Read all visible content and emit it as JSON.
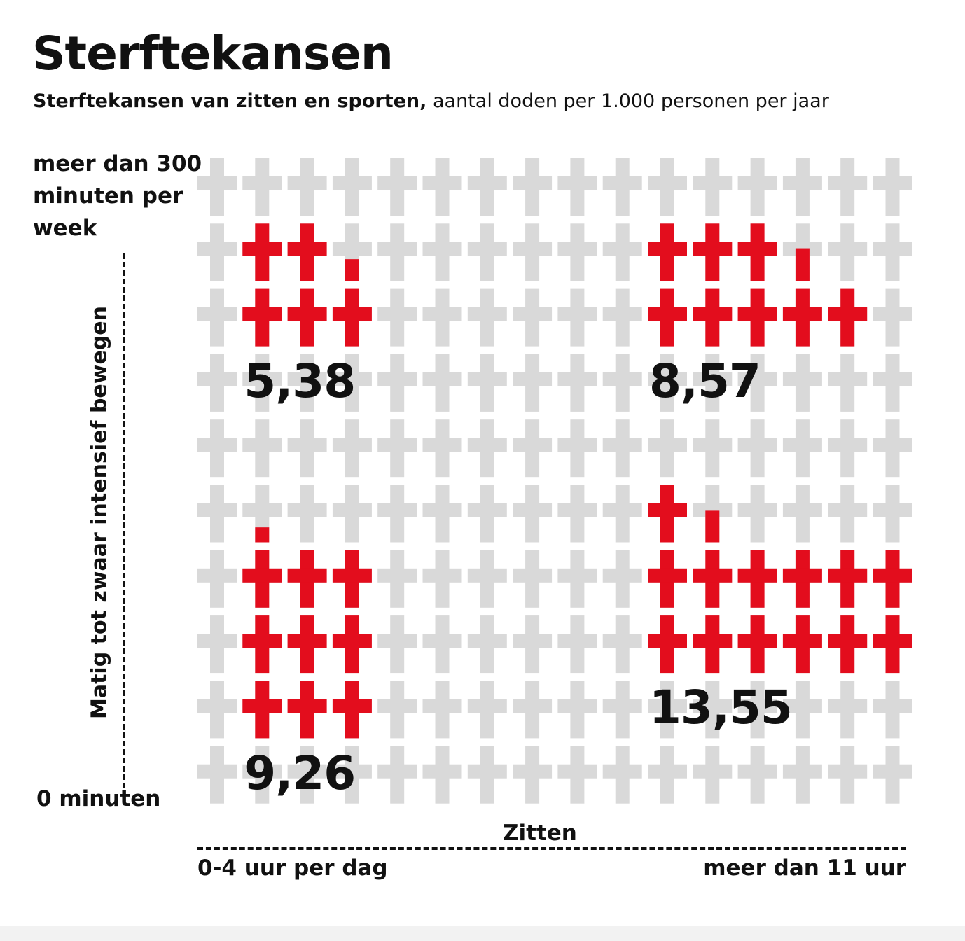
{
  "title": "Sterftekansen",
  "subtitle_bold": "Sterftekansen van zitten en sporten,",
  "subtitle_rest": " aantal doden per 1.000 personen per jaar",
  "y_axis": {
    "title": "Matig tot zwaar intensief bewegen",
    "top_label": "meer dan 300 minuten per week",
    "bottom_label": "0 minuten"
  },
  "x_axis": {
    "title": "Zitten",
    "left_label": "0-4 uur per dag",
    "right_label": "meer dan 11 uur"
  },
  "colors": {
    "highlight": "#e30d1d",
    "background_cross": "#d9d9d9",
    "text": "#111111"
  },
  "chart_data": {
    "type": "table",
    "unit": "aantal doden per 1.000 personen per jaar",
    "cells": [
      {
        "exercise": "meer dan 300 minuten per week",
        "sitting": "0-4 uur per dag",
        "value": 5.38,
        "label": "5,38"
      },
      {
        "exercise": "meer dan 300 minuten per week",
        "sitting": "meer dan 11 uur",
        "value": 8.57,
        "label": "8,57"
      },
      {
        "exercise": "0 minuten",
        "sitting": "0-4 uur per dag",
        "value": 9.26,
        "label": "9,26"
      },
      {
        "exercise": "0 minuten",
        "sitting": "meer dan 11 uur",
        "value": 13.55,
        "label": "13,55"
      }
    ],
    "grid_rows": 10,
    "grid_cols": 16
  }
}
